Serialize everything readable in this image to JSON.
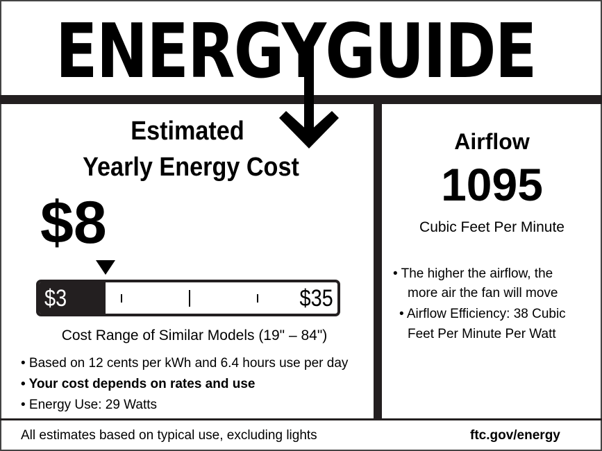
{
  "logo": {
    "text": "ENERGYGUIDE"
  },
  "cost": {
    "heading_line1": "Estimated",
    "heading_line2": "Yearly Energy Cost",
    "value": "$8",
    "range_low": "$3",
    "range_high": "$35",
    "range_low_value": 3,
    "range_high_value": 35,
    "cost_value": 8,
    "range_caption": "Cost Range of Similar Models (19\" – 84\")",
    "notes": [
      "• Based on 12 cents per kWh and 6.4 hours use per day",
      "• Your cost depends on rates and use",
      "• Energy Use: 29 Watts"
    ]
  },
  "airflow": {
    "heading": "Airflow",
    "value": "1095",
    "unit": "Cubic Feet Per Minute",
    "notes": [
      "• The higher the airflow, the",
      "more air the fan will move",
      "• Airflow Efficiency: 38 Cubic",
      "Feet Per Minute Per Watt"
    ]
  },
  "footer": {
    "disclaimer": "All estimates based on typical use, excluding lights",
    "link": "ftc.gov/energy"
  }
}
